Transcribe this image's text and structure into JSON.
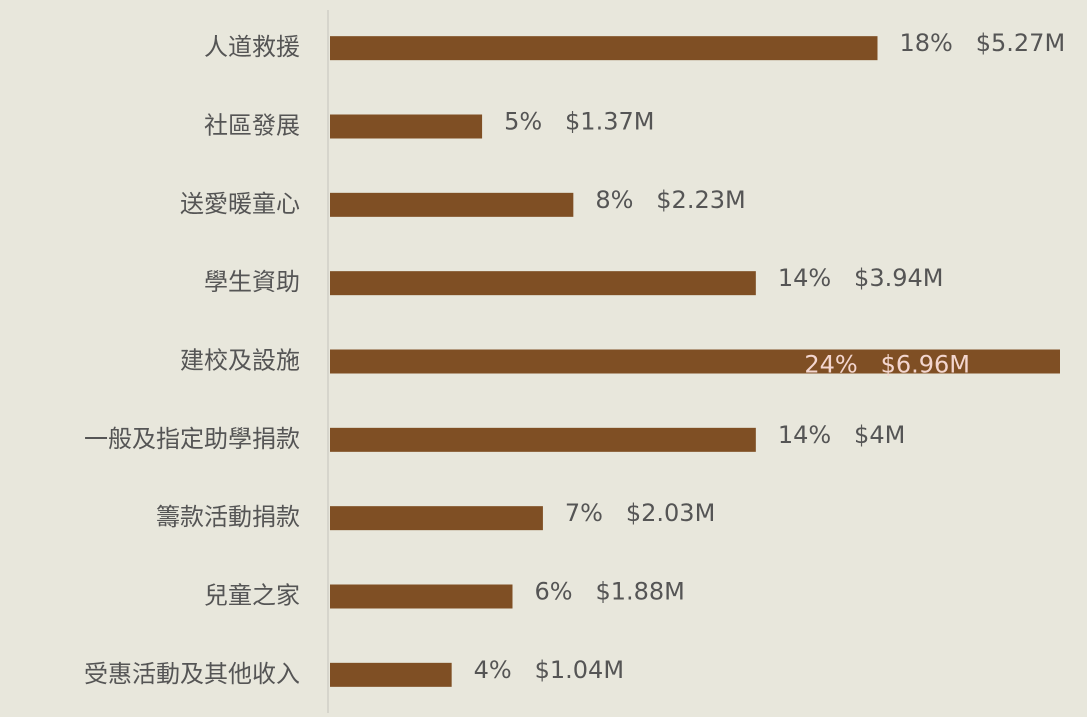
{
  "chart_data": {
    "type": "bar",
    "orientation": "horizontal",
    "categories": [
      "人道救援",
      "社區發展",
      "送愛暖童心",
      "學生資助",
      "建校及設施",
      "一般及指定助學捐款",
      "籌款活動捐款",
      "兒童之家",
      "受惠活動及其他收入"
    ],
    "values": [
      18,
      5,
      8,
      14,
      24,
      14,
      7,
      6,
      4
    ],
    "value_labels": [
      "18%   $5.27M",
      "5%   $1.37M",
      "8%   $2.23M",
      "14%   $3.94M",
      "24%   $6.96M",
      "14%   $4M",
      "7%   $2.03M",
      "6%   $1.88M",
      "4%   $1.04M"
    ],
    "color": "#7f4f24",
    "xlim": [
      0,
      24
    ]
  }
}
